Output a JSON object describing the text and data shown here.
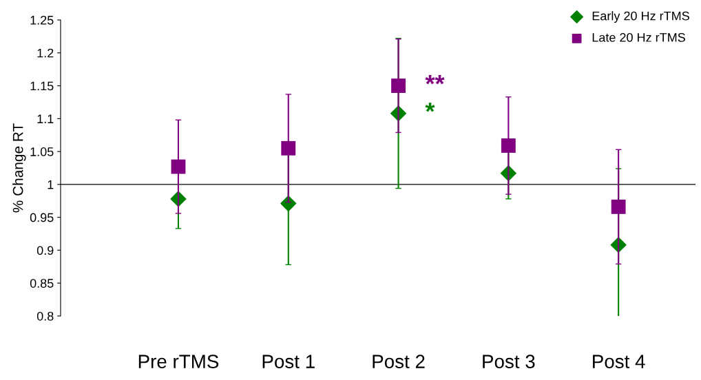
{
  "chart_data": {
    "type": "scatter",
    "ylabel": "% Change RT",
    "categories": [
      "Pre rTMS",
      "Post 1",
      "Post 2",
      "Post 3",
      "Post 4"
    ],
    "series": [
      {
        "name": "Early 20 Hz rTMS",
        "color": "#008000",
        "marker": "diamond",
        "values": [
          0.978,
          0.971,
          1.108,
          1.017,
          0.908
        ],
        "errors": [
          0.045,
          0.093,
          0.114,
          0.039,
          0.116
        ]
      },
      {
        "name": "Late 20 Hz rTMS",
        "color": "#800080",
        "marker": "square",
        "values": [
          1.027,
          1.055,
          1.15,
          1.059,
          0.966
        ],
        "errors": [
          0.071,
          0.082,
          0.071,
          0.074,
          0.087
        ]
      }
    ],
    "ylim": [
      0.8,
      1.25
    ],
    "yticks": [
      0.8,
      0.85,
      0.9,
      0.95,
      1,
      1.05,
      1.1,
      1.15,
      1.2,
      1.25
    ],
    "ref_lines": [
      {
        "axis": "y",
        "value": 1,
        "color": "#000000"
      }
    ],
    "annotations": [
      {
        "text": "*",
        "x": "Post 2",
        "y": 1.108
      },
      {
        "text": "**",
        "x": "Post 2",
        "y": 1.15
      }
    ],
    "legend": "top right",
    "grid": false
  }
}
